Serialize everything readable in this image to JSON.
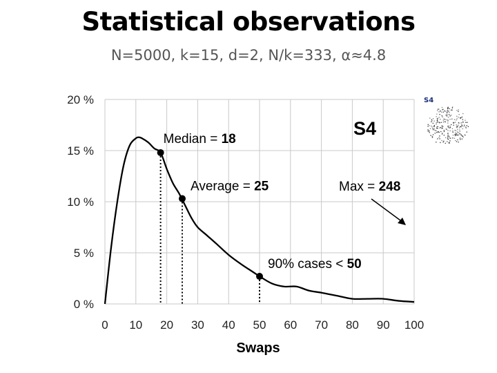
{
  "header": {
    "title": "Statistical observations",
    "subtitle": "N=5000, k=15, d=2, N/k=333, α≈4.8"
  },
  "inset": {
    "label": "S4"
  },
  "chart_data": {
    "type": "line",
    "title": "S4",
    "xlabel": "Swaps",
    "ylabel": "",
    "xlim": [
      0,
      100
    ],
    "ylim": [
      0,
      20
    ],
    "xticks": [
      "0",
      "10",
      "20",
      "30",
      "40",
      "50",
      "60",
      "70",
      "80",
      "90",
      "100"
    ],
    "yticks": [
      "0 %",
      "5 %",
      "10 %",
      "15 %",
      "20 %"
    ],
    "grid": true,
    "series": [
      {
        "name": "S4",
        "x": [
          0,
          2,
          4,
          6,
          8,
          10,
          11,
          12,
          14,
          16,
          18,
          20,
          22,
          24,
          26,
          28,
          30,
          33,
          36,
          40,
          44,
          48,
          50,
          54,
          58,
          62,
          66,
          70,
          75,
          80,
          85,
          90,
          95,
          100
        ],
        "y": [
          0,
          5.5,
          10,
          13.5,
          15.5,
          16.2,
          16.3,
          16.2,
          15.8,
          15.2,
          14.8,
          13.2,
          11.8,
          10.8,
          9.6,
          8.4,
          7.5,
          6.7,
          5.9,
          4.8,
          3.9,
          3.1,
          2.7,
          2.0,
          1.7,
          1.7,
          1.3,
          1.1,
          0.8,
          0.5,
          0.5,
          0.5,
          0.3,
          0.2
        ]
      }
    ],
    "markers": [
      {
        "x": 18,
        "y": 14.8,
        "label_prefix": "Median = ",
        "label_value": "18"
      },
      {
        "x": 25,
        "y": 10.3,
        "label_prefix": "Average = ",
        "label_value": "25"
      },
      {
        "x": 50,
        "y": 2.7,
        "label_prefix": "90% cases < ",
        "label_value": "50"
      }
    ],
    "annotation": {
      "label_prefix": "Max = ",
      "label_value": "248"
    }
  },
  "colors": {
    "grid": "#c8c8c8",
    "line": "#000000",
    "text": "#222222"
  }
}
